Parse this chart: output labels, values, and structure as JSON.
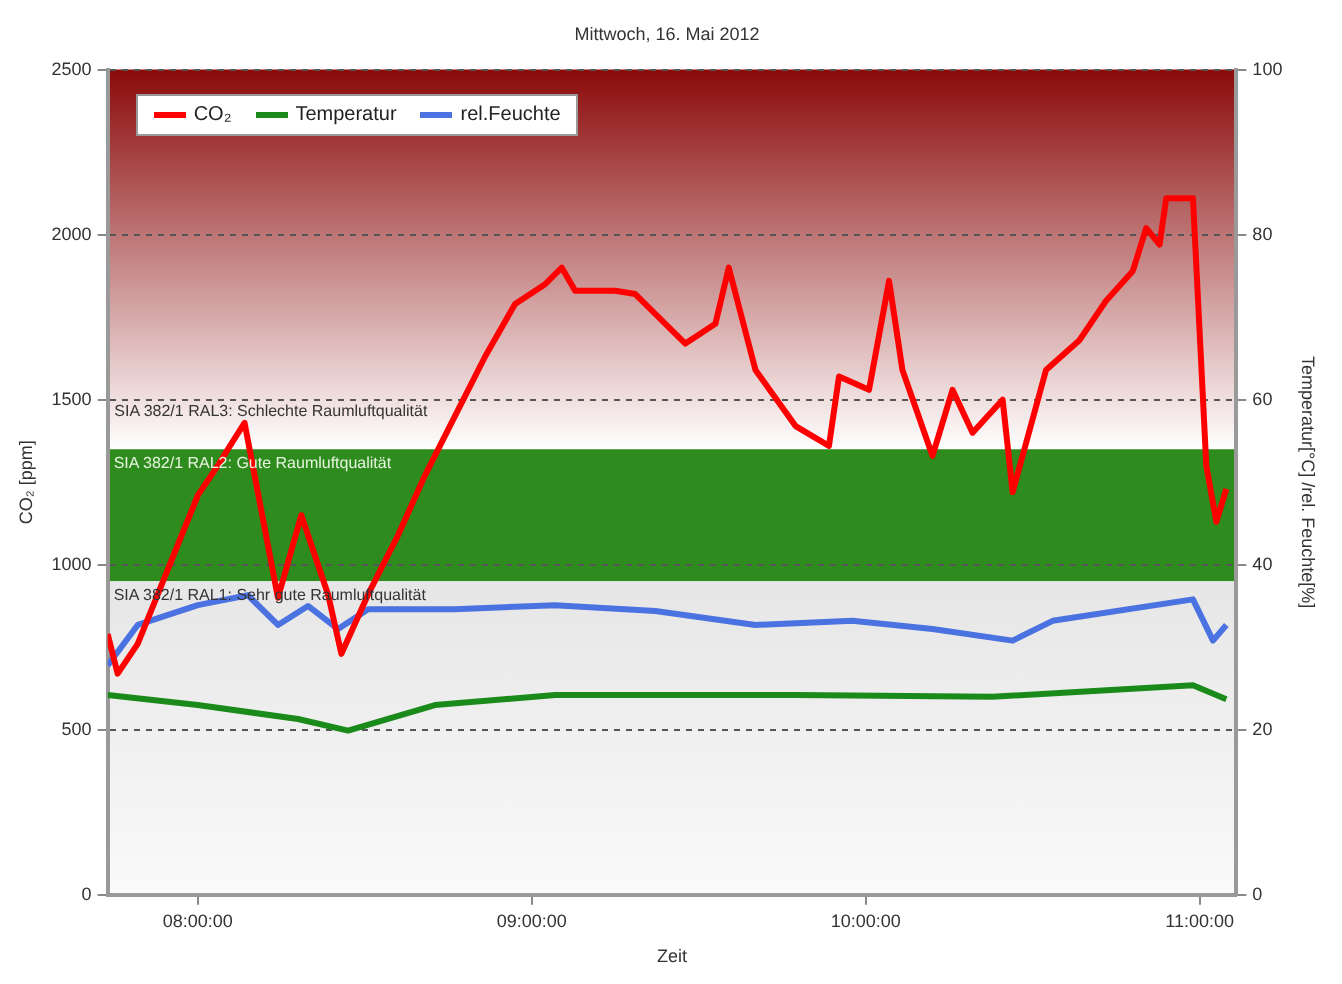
{
  "chart_data": {
    "type": "line",
    "title": "Mittwoch, 16. Mai 2012",
    "xlabel": "Zeit",
    "ylabel": "CO₂ [ppm]",
    "y2label": "Temperatur[°C] /rel. Feuchte[%]",
    "xlim": [
      7.73,
      11.11
    ],
    "xticks": [
      {
        "value": 8,
        "label": "08:00:00"
      },
      {
        "value": 9,
        "label": "09:00:00"
      },
      {
        "value": 10,
        "label": "10:00:00"
      },
      {
        "value": 11,
        "label": "11:00:00"
      }
    ],
    "ylim": [
      0,
      2500
    ],
    "yticks": [
      0,
      500,
      1000,
      1500,
      2000,
      2500
    ],
    "y2lim": [
      0,
      100
    ],
    "y2ticks": [
      0,
      20,
      40,
      60,
      80,
      100
    ],
    "grid": "y",
    "legend": "top left",
    "marker": "none",
    "line_style": "solid",
    "bands": [
      {
        "axis": "y",
        "from": 1350,
        "to": 2500,
        "color": "#8b0a0a"
      },
      {
        "axis": "y",
        "from": 950,
        "to": 1350,
        "color": "#2e8b1e",
        "label": "SIA 382/1 RAL2: Gute Raumluftqualität"
      },
      {
        "axis": "y",
        "from": 0,
        "to": 950,
        "color": "#e6e6e6",
        "label": "SIA 382/1 RAL1: Sehr gute Raumluftqualität"
      }
    ],
    "annotations": [
      {
        "text": "SIA 382/1 RAL3: Schlechte Raumluftqualität",
        "x": 7.75,
        "y": 1500
      }
    ],
    "series": [
      {
        "name": "CO₂",
        "color": "#ff0000",
        "x": [
          7.73,
          7.76,
          7.82,
          7.88,
          7.94,
          8.0,
          8.06,
          8.09,
          8.14,
          8.24,
          8.31,
          8.39,
          8.43,
          8.51,
          8.6,
          8.68,
          8.77,
          8.86,
          8.95,
          9.04,
          9.09,
          9.13,
          9.25,
          9.31,
          9.4,
          9.46,
          9.55,
          9.59,
          9.67,
          9.79,
          9.89,
          9.92,
          10.01,
          10.07,
          10.11,
          10.2,
          10.26,
          10.32,
          10.41,
          10.44,
          10.54,
          10.64,
          10.72,
          10.8,
          10.84,
          10.88,
          10.9,
          10.98,
          11.02,
          11.05,
          11.08
        ],
        "values": [
          790,
          670,
          760,
          910,
          1060,
          1210,
          1300,
          1350,
          1430,
          900,
          1150,
          910,
          730,
          910,
          1090,
          1270,
          1450,
          1630,
          1790,
          1850,
          1900,
          1830,
          1830,
          1820,
          1730,
          1670,
          1730,
          1900,
          1590,
          1420,
          1360,
          1570,
          1530,
          1860,
          1590,
          1330,
          1530,
          1400,
          1500,
          1220,
          1590,
          1680,
          1800,
          1890,
          2020,
          1970,
          2110,
          2110,
          1300,
          1130,
          1230
        ]
      },
      {
        "name": "Temperatur",
        "color": "#1a8a1a",
        "axis": "y2",
        "x": [
          7.73,
          8.0,
          8.3,
          8.45,
          8.71,
          9.07,
          9.79,
          10.38,
          10.98,
          11.08
        ],
        "values": [
          24.2,
          23,
          21.3,
          19.9,
          23,
          24.2,
          24.2,
          24,
          25.4,
          23.7
        ]
      },
      {
        "name": "rel.Feuchte",
        "color": "#4a72e0",
        "axis": "y2",
        "x": [
          7.73,
          7.82,
          8.0,
          8.15,
          8.24,
          8.33,
          8.42,
          8.51,
          8.77,
          9.07,
          9.37,
          9.67,
          9.96,
          10.2,
          10.44,
          10.56,
          10.98,
          11.04,
          11.08
        ],
        "values": [
          27.8,
          32.7,
          35.1,
          36.3,
          32.7,
          35,
          32.2,
          34.6,
          34.6,
          35.1,
          34.4,
          32.7,
          33.2,
          32.2,
          30.8,
          33.2,
          35.8,
          30.8,
          32.7
        ]
      }
    ]
  }
}
